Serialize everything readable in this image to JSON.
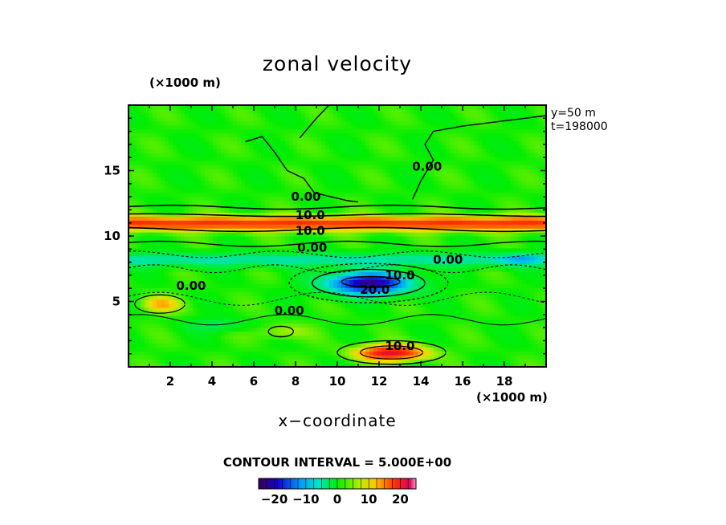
{
  "chart_data": {
    "type": "heatmap",
    "title": "zonal velocity",
    "xlabel": "x−coordinate",
    "x_unit": "(×1000 m)",
    "y_unit": "(×1000 m)",
    "xlim": [
      0,
      20
    ],
    "ylim": [
      0,
      20
    ],
    "x_ticks": [
      2,
      4,
      6,
      8,
      10,
      12,
      14,
      16,
      18
    ],
    "y_ticks": [
      5,
      10,
      15
    ],
    "annotations": [
      "y=50 m",
      "t=198000"
    ],
    "contour_interval_text": "CONTOUR INTERVAL = 5.000E+00",
    "contour_labels": [
      {
        "text": "0.00",
        "x": 8.5,
        "y": 13.0
      },
      {
        "text": "10.0",
        "x": 8.7,
        "y": 11.6
      },
      {
        "text": "10.0",
        "x": 8.7,
        "y": 10.4
      },
      {
        "text": "0.00",
        "x": 8.8,
        "y": 9.1
      },
      {
        "text": "0.00",
        "x": 15.3,
        "y": 8.2
      },
      {
        "text": "0.00",
        "x": 3.0,
        "y": 6.2
      },
      {
        "text": "10.0",
        "x": 13.0,
        "y": 7.0
      },
      {
        "text": "20.0",
        "x": 11.8,
        "y": 5.9
      },
      {
        "text": "0.00",
        "x": 7.7,
        "y": 4.3
      },
      {
        "text": "10.0",
        "x": 13.0,
        "y": 1.6
      },
      {
        "text": "0.00",
        "x": 14.3,
        "y": 15.3
      }
    ],
    "colorbar": {
      "range": [
        -25,
        25
      ],
      "tick_labels": [
        "−20",
        "−10",
        "0",
        "10",
        "20"
      ],
      "tick_values": [
        -20,
        -10,
        0,
        10,
        20
      ]
    },
    "features": [
      {
        "kind": "jet",
        "sign": "positive",
        "x_range": [
          0,
          20
        ],
        "y_center": 11.0,
        "peak": 16
      },
      {
        "kind": "core",
        "sign": "negative",
        "x_center": 11.5,
        "y_center": 6.5,
        "peak": -26
      },
      {
        "kind": "core",
        "sign": "positive",
        "x_center": 12.5,
        "y_center": 1.2,
        "peak": 18
      },
      {
        "kind": "patch",
        "sign": "positive",
        "x_center": 1.5,
        "y_center": 4.8,
        "peak": 9
      },
      {
        "kind": "band",
        "sign": "negative",
        "x_range": [
          0,
          20
        ],
        "y_center": 8.0,
        "peak": -9
      }
    ]
  }
}
